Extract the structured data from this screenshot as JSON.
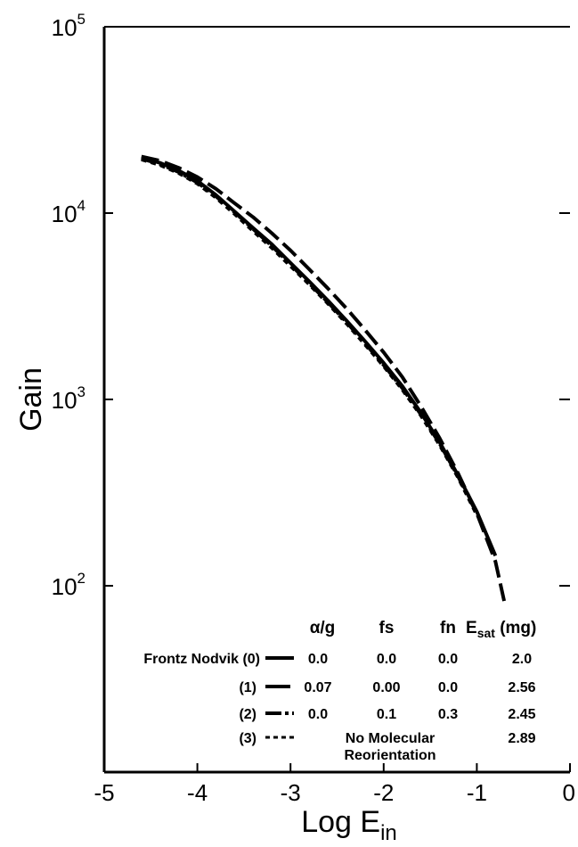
{
  "chart_data": {
    "type": "line",
    "xlabel": "Log E",
    "xlabel_sub": "in",
    "ylabel": "Gain",
    "xlim": [
      -5,
      0
    ],
    "ylim": [
      10,
      100000
    ],
    "y_scale": "log",
    "grid": false,
    "x_ticks": [
      "-5",
      "-4",
      "-3",
      "-2",
      "-1",
      "0"
    ],
    "y_ticks": [
      {
        "base": "10",
        "exp": "2",
        "value": 100
      },
      {
        "base": "10",
        "exp": "3",
        "value": 1000
      },
      {
        "base": "10",
        "exp": "4",
        "value": 10000
      },
      {
        "base": "10",
        "exp": "5",
        "value": 100000
      }
    ],
    "series": [
      {
        "key": "0",
        "style": "solid",
        "x": [
          -4.6,
          -4.4,
          -4.2,
          -4.0,
          -3.8,
          -3.6,
          -3.4,
          -3.2,
          -3.0,
          -2.8,
          -2.6,
          -2.4,
          -2.2,
          -2.0,
          -1.8,
          -1.6,
          -1.4,
          -1.2,
          -1.0,
          -0.8
        ],
        "y": [
          19800,
          18600,
          16900,
          14900,
          12500,
          10200,
          8300,
          6800,
          5400,
          4300,
          3400,
          2650,
          2050,
          1570,
          1180,
          850,
          590,
          390,
          250,
          145
        ]
      },
      {
        "key": "1",
        "style": "long-dash",
        "x": [
          -4.6,
          -4.4,
          -4.2,
          -4.0,
          -3.8,
          -3.6,
          -3.4,
          -3.2,
          -3.0,
          -2.8,
          -2.6,
          -2.4,
          -2.2,
          -2.0,
          -1.8,
          -1.6,
          -1.4,
          -1.2,
          -1.0,
          -0.8,
          -0.7
        ],
        "y": [
          20100,
          19100,
          17500,
          15600,
          13500,
          11300,
          9500,
          7800,
          6300,
          5000,
          3950,
          3080,
          2360,
          1790,
          1320,
          920,
          620,
          400,
          245,
          135,
          80
        ]
      },
      {
        "key": "2",
        "style": "dash-dot",
        "x": [
          -4.6,
          -4.4,
          -4.2,
          -4.0,
          -3.8,
          -3.6,
          -3.4,
          -3.2,
          -3.0,
          -2.8,
          -2.6,
          -2.4,
          -2.2,
          -2.0,
          -1.8,
          -1.6,
          -1.4,
          -1.2,
          -1.0
        ],
        "y": [
          19600,
          18300,
          16600,
          14600,
          12300,
          10100,
          8200,
          6650,
          5300,
          4200,
          3330,
          2600,
          2000,
          1530,
          1150,
          830,
          580,
          385,
          245
        ]
      },
      {
        "key": "3",
        "style": "short-dash",
        "x": [
          -4.6,
          -4.4,
          -4.2,
          -4.0,
          -3.8,
          -3.6,
          -3.4,
          -3.2,
          -3.0,
          -2.8,
          -2.6,
          -2.4,
          -2.2,
          -2.0,
          -1.8,
          -1.6,
          -1.4,
          -1.2,
          -1.0
        ],
        "y": [
          19400,
          18100,
          16400,
          14400,
          12100,
          9900,
          8000,
          6500,
          5200,
          4150,
          3280,
          2560,
          1970,
          1510,
          1130,
          820,
          570,
          380,
          240
        ]
      }
    ],
    "legend": {
      "placement": "bottom-right",
      "headers": [
        "α/g",
        "fs",
        "fn",
        "E",
        "sat",
        " (mg)"
      ],
      "rows": [
        {
          "label": "Frontz Nodvik (0)",
          "alpha_g": "0.0",
          "fs": "0.0",
          "fn": "0.0",
          "esat": "2.0"
        },
        {
          "label": "(1)",
          "alpha_g": "0.07",
          "fs": "0.00",
          "fn": "0.0",
          "esat": "2.56"
        },
        {
          "label": "(2)",
          "alpha_g": "0.0",
          "fs": "0.1",
          "fn": "0.3",
          "esat": "2.45"
        },
        {
          "label": "(3)",
          "note_line1": "No Molecular",
          "note_line2": "Reorientation",
          "esat": "2.89"
        }
      ]
    }
  }
}
